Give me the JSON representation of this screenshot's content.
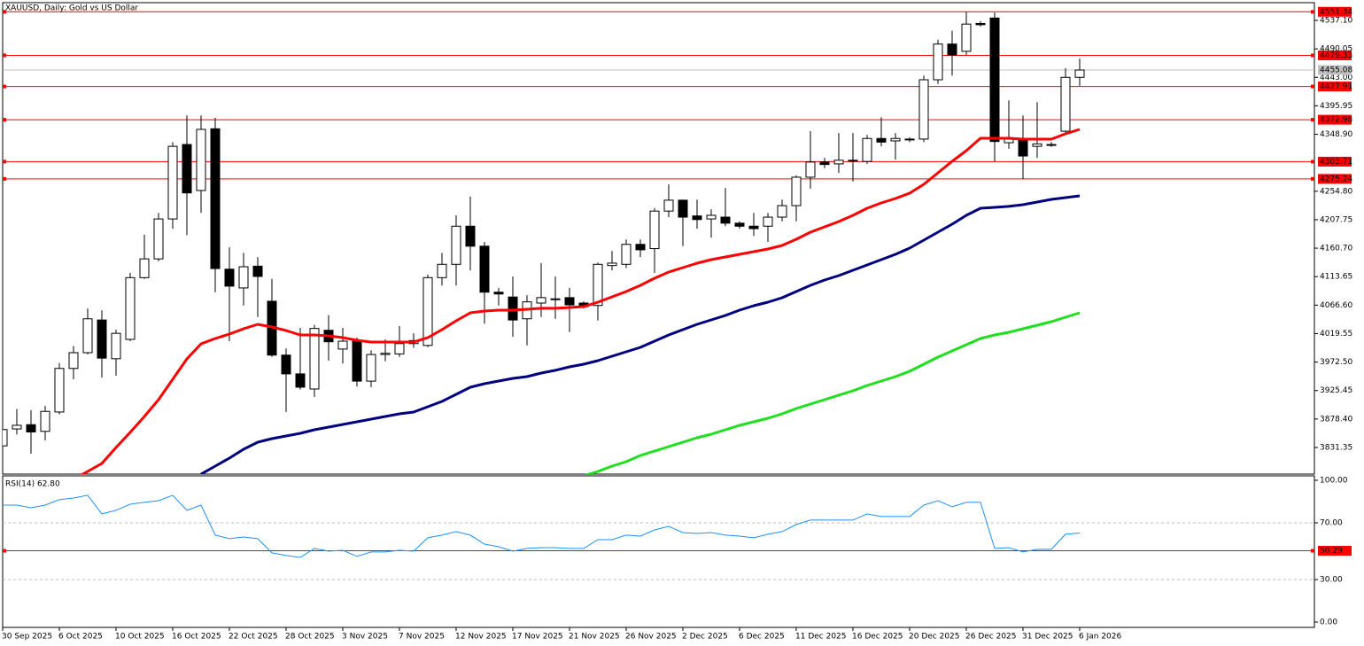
{
  "chart_data": [
    {
      "type": "candlestick",
      "title": "XAUUSD, Daily:  Gold vs US Dollar",
      "categories": [
        "30 Sep 2025",
        null,
        null,
        null,
        "6 Oct 2025",
        null,
        null,
        null,
        "10 Oct 2025",
        null,
        null,
        null,
        "16 Oct 2025",
        null,
        null,
        null,
        "22 Oct 2025",
        null,
        null,
        null,
        "28 Oct 2025",
        null,
        null,
        null,
        "3 Nov 2025",
        null,
        null,
        null,
        "7 Nov 2025",
        null,
        null,
        null,
        "12 Nov 2025",
        null,
        null,
        null,
        "17 Nov 2025",
        null,
        null,
        null,
        "21 Nov 2025",
        null,
        null,
        null,
        "26 Nov 2025",
        null,
        null,
        null,
        "2 Dec 2025",
        null,
        null,
        null,
        "6 Dec 2025",
        null,
        null,
        null,
        "11 Dec 2025",
        null,
        null,
        null,
        "16 Dec 2025",
        null,
        null,
        null,
        "20 Dec 2025",
        null,
        null,
        null,
        "26 Dec 2025",
        null,
        null,
        null,
        "31 Dec 2025",
        null,
        null,
        null,
        "6 Jan 2026"
      ],
      "open": [
        3834,
        3862,
        3869,
        3858,
        3890,
        3962,
        3988,
        4042,
        3978,
        4010,
        4112,
        4143,
        4209,
        4332,
        4256,
        4358,
        4126,
        4095,
        4131,
        4073,
        3984,
        3953,
        3928,
        4025,
        3994,
        4007,
        3941,
        3985,
        3986,
        4003,
        4000,
        4112,
        4134,
        4197,
        4164,
        4088,
        4080,
        4044,
        4070,
        4077,
        4079,
        4070,
        4066,
        4132,
        4134,
        4167,
        4160,
        4222,
        4240,
        4214,
        4209,
        4212,
        4202,
        4197,
        4197,
        4212,
        4231,
        4278,
        4303,
        4300,
        4305,
        4304,
        4342,
        4338,
        4340,
        4341,
        4439,
        4498,
        4486,
        4532,
        4541,
        4335,
        4341,
        4329,
        4331,
        4354,
        4443
      ],
      "high": [
        3868,
        3895,
        3893,
        3900,
        3971,
        3999,
        4061,
        4058,
        4026,
        4120,
        4183,
        4219,
        4336,
        4380,
        4380,
        4376,
        4162,
        4153,
        4146,
        4110,
        3995,
        4029,
        4034,
        4050,
        4029,
        4013,
        3992,
        4010,
        4032,
        4020,
        4117,
        4153,
        4215,
        4246,
        4171,
        4095,
        4114,
        4083,
        4136,
        4114,
        4095,
        4073,
        4137,
        4156,
        4175,
        4175,
        4227,
        4266,
        4241,
        4241,
        4225,
        4260,
        4205,
        4219,
        4219,
        4241,
        4281,
        4354,
        4310,
        4351,
        4351,
        4348,
        4377,
        4351,
        4344,
        4446,
        4505,
        4520,
        4551,
        4536,
        4550,
        4405,
        4380,
        4402,
        4336,
        4458,
        4474
      ],
      "low": [
        3831,
        3853,
        3821,
        3843,
        3886,
        3944,
        3985,
        3947,
        3950,
        4007,
        4110,
        4139,
        4193,
        4182,
        4219,
        4088,
        4007,
        4066,
        4047,
        3981,
        3890,
        3927,
        3915,
        3975,
        3970,
        3932,
        3931,
        3974,
        3981,
        3996,
        3997,
        4099,
        4099,
        4124,
        4036,
        4066,
        4014,
        4000,
        4047,
        4044,
        4022,
        4061,
        4041,
        4124,
        4128,
        4146,
        4120,
        4212,
        4164,
        4193,
        4178,
        4197,
        4193,
        4181,
        4171,
        4205,
        4205,
        4259,
        4293,
        4285,
        4271,
        4300,
        4329,
        4307,
        4336,
        4336,
        4432,
        4446,
        4480,
        4527,
        4304,
        4325,
        4275,
        4310,
        4328,
        4351,
        4429
      ],
      "close": [
        3861,
        3868,
        3857,
        3891,
        3962,
        3988,
        4044,
        3979,
        4020,
        4112,
        4143,
        4209,
        4329,
        4252,
        4357,
        4127,
        4098,
        4130,
        4114,
        3984,
        3953,
        3931,
        4028,
        4006,
        4007,
        3941,
        3985,
        3987,
        4003,
        4008,
        4112,
        4134,
        4197,
        4164,
        4088,
        4085,
        4042,
        4072,
        4079,
        4077,
        4067,
        4064,
        4134,
        4136,
        4167,
        4158,
        4222,
        4240,
        4212,
        4208,
        4215,
        4202,
        4197,
        4193,
        4212,
        4231,
        4278,
        4303,
        4299,
        4306,
        4306,
        4342,
        4336,
        4342,
        4341,
        4439,
        4498,
        4480,
        4531,
        4530,
        4337,
        4341,
        4313,
        4333,
        4332,
        4443,
        4455.08
      ],
      "up_color": "#ffffff",
      "down_color": "#000000",
      "overlays": [
        {
          "color": "#ff0000",
          "values": [
            null,
            null,
            null,
            null,
            null,
            3778.7,
            3791.8,
            3805.0,
            3831.4,
            3856.3,
            3882.6,
            3910.4,
            3944.1,
            3977.8,
            4002.7,
            4011.4,
            4018.8,
            4027.6,
            4034.9,
            4030.5,
            4024.6,
            4017.3,
            4017.3,
            4015.9,
            4012.9,
            4008.5,
            4005.6,
            4005.6,
            4005.6,
            4005.6,
            4012.9,
            4026.1,
            4040.7,
            4053.9,
            4056.9,
            4058.3,
            4058.3,
            4059.8,
            4061.3,
            4061.3,
            4062.7,
            4064.2,
            4071.5,
            4080.3,
            4089.1,
            4099.3,
            4111.0,
            4121.3,
            4128.6,
            4135.9,
            4141.8,
            4146.2,
            4150.6,
            4155.0,
            4159.3,
            4165.2,
            4175.4,
            4187.2,
            4195.9,
            4204.7,
            4215.0,
            4226.7,
            4235.5,
            4242.8,
            4251.6,
            4266.2,
            4285.3,
            4304.3,
            4321.9,
            4342.4,
            4342.4,
            4342.4,
            4340.9,
            4340.9,
            4340.9,
            4349.7,
            4357.0
          ]
        },
        {
          "color": "#000080",
          "values": [
            null,
            null,
            null,
            null,
            null,
            null,
            null,
            null,
            null,
            null,
            null,
            null,
            null,
            null,
            3787.4,
            3800.6,
            3813.8,
            3828.4,
            3840.1,
            3846.0,
            3850.4,
            3854.8,
            3860.6,
            3865.0,
            3869.4,
            3873.8,
            3878.2,
            3882.6,
            3887.0,
            3889.9,
            3898.7,
            3907.5,
            3919.2,
            3930.9,
            3936.8,
            3941.2,
            3945.6,
            3948.5,
            3954.4,
            3958.8,
            3964.6,
            3969.0,
            3974.9,
            3982.2,
            3989.5,
            3996.8,
            4007.1,
            4017.3,
            4026.1,
            4034.9,
            4042.2,
            4049.5,
            4058.3,
            4065.6,
            4071.5,
            4078.8,
            4089.1,
            4099.3,
            4108.1,
            4115.4,
            4124.2,
            4133.0,
            4141.8,
            4150.6,
            4160.8,
            4174.0,
            4187.2,
            4200.4,
            4215.0,
            4226.7,
            4228.2,
            4229.7,
            4232.6,
            4237.0,
            4241.3,
            4244.3,
            4247.2
          ]
        },
        {
          "color": "#1ee01e",
          "values": [
            null,
            null,
            null,
            null,
            null,
            null,
            null,
            null,
            null,
            null,
            null,
            null,
            null,
            null,
            null,
            null,
            null,
            null,
            null,
            null,
            null,
            null,
            null,
            null,
            null,
            null,
            null,
            null,
            null,
            null,
            null,
            null,
            null,
            null,
            null,
            null,
            null,
            null,
            null,
            null,
            null,
            3784.5,
            3791.8,
            3800.6,
            3807.9,
            3818.2,
            3825.5,
            3832.8,
            3840.1,
            3847.5,
            3853.3,
            3860.6,
            3868.0,
            3873.8,
            3879.7,
            3887.0,
            3895.8,
            3903.1,
            3910.4,
            3917.8,
            3925.1,
            3933.9,
            3941.2,
            3948.5,
            3957.3,
            3969.0,
            3980.7,
            3990.9,
            4001.2,
            4011.4,
            4017.3,
            4021.7,
            4027.6,
            4033.4,
            4039.3,
            4046.6,
            4053.9
          ]
        }
      ],
      "levels": [
        4551.34,
        4479.33,
        4427.91,
        4372.98,
        4303.71,
        4275.24
      ],
      "level_color": "#ff0000",
      "last_price": 4455.08,
      "last_price_color": "#c0c0c0",
      "ylim": [
        3787.4,
        4566.4
      ],
      "yticks": [
        {
          "value": 4537.1,
          "label": "4537.10"
        },
        4490.05,
        {
          "value": 4443,
          "label": "4443.00"
        },
        4395.95,
        {
          "value": 4348.9,
          "label": "4348.90"
        },
        {
          "value": 4254.8,
          "label": "4254.80"
        },
        4207.75,
        {
          "value": 4160.7,
          "label": "4160.70"
        },
        4113.65,
        {
          "value": 4066.6,
          "label": "4066.60"
        },
        4019.55,
        {
          "value": 3972.5,
          "label": "3972.50"
        },
        3925.45,
        {
          "value": 3878.4,
          "label": "3878.40"
        },
        3831.35
      ]
    },
    {
      "type": "line",
      "title": "RSI(14) 62.80",
      "color": "#1e90ff",
      "values": [
        82.5,
        82.5,
        80.6,
        82.5,
        86.3,
        87.5,
        89.4,
        76.3,
        78.8,
        83.1,
        84.4,
        85.6,
        89.4,
        78.8,
        82.5,
        61.3,
        58.8,
        60.0,
        58.8,
        48.8,
        46.9,
        45.6,
        51.9,
        50.0,
        50.6,
        46.3,
        49.4,
        49.4,
        50.6,
        50.0,
        59.4,
        61.3,
        63.8,
        61.3,
        55.0,
        53.1,
        50.0,
        51.9,
        52.5,
        52.5,
        51.9,
        51.9,
        58.1,
        58.1,
        61.3,
        60.6,
        65.0,
        67.5,
        63.1,
        62.5,
        63.1,
        61.3,
        60.6,
        59.4,
        61.9,
        63.8,
        68.8,
        71.9,
        71.9,
        71.9,
        71.9,
        76.3,
        74.4,
        74.4,
        74.4,
        82.5,
        85.6,
        81.3,
        84.4,
        84.4,
        51.9,
        52.5,
        49.4,
        51.3,
        51.3,
        61.9,
        62.8
      ],
      "levels": [
        50.29
      ],
      "level_color": "#ff0000",
      "ylim": [
        -3.75,
        103.1
      ],
      "yticks": [
        {
          "value": 100,
          "label": "100.00"
        },
        {
          "value": 70,
          "label": "70.00"
        },
        {
          "value": 30,
          "label": "30.00"
        },
        {
          "value": 0,
          "label": "0.00"
        }
      ]
    }
  ]
}
